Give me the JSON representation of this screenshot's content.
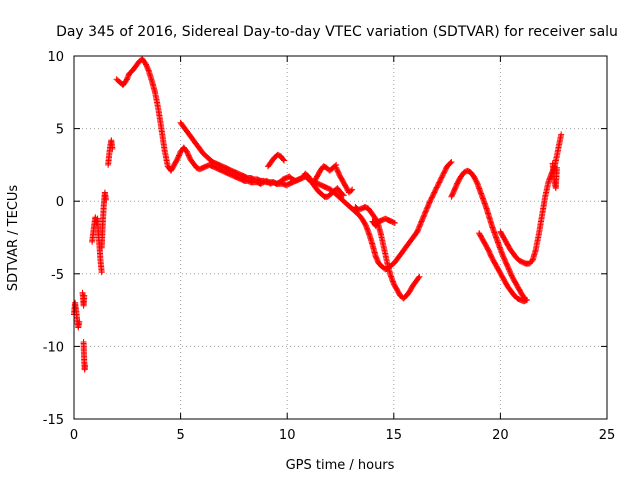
{
  "chart_data": {
    "type": "scatter",
    "title": "Day 345 of 2016, Sidereal Day-to-day VTEC variation (SDTVAR) for receiver salu",
    "xlabel": "GPS time / hours",
    "ylabel": "SDTVAR / TECUs",
    "xlim": [
      0,
      25
    ],
    "ylim": [
      -15,
      10
    ],
    "xticks": [
      0,
      5,
      10,
      15,
      20,
      25
    ],
    "yticks": [
      -15,
      -10,
      -5,
      0,
      5,
      10
    ],
    "grid": true,
    "legend": "none",
    "marker": "+",
    "series": [
      {
        "name": "SDTVAR",
        "color": "#ff0000",
        "segments": [
          {
            "x": [
              0.0,
              0.05,
              0.1,
              0.15,
              0.2,
              0.25
            ],
            "y": [
              -7.8,
              -7.0,
              -7.5,
              -8.2,
              -8.7,
              -8.3
            ]
          },
          {
            "x": [
              0.4,
              0.42,
              0.45,
              0.48
            ],
            "y": [
              -6.3,
              -6.6,
              -7.2,
              -6.5
            ]
          },
          {
            "x": [
              0.45,
              0.48,
              0.5,
              0.52
            ],
            "y": [
              -9.7,
              -11.0,
              -11.6,
              -11.3
            ]
          },
          {
            "x": [
              0.85,
              0.9,
              0.95,
              1.0,
              1.05,
              1.1,
              1.15,
              1.2,
              1.25,
              1.3
            ],
            "y": [
              -2.8,
              -2.2,
              -1.6,
              -1.1,
              -1.5,
              -1.2,
              -2.4,
              -3.2,
              -4.2,
              -4.9
            ]
          },
          {
            "x": [
              1.3,
              1.35,
              1.4,
              1.45,
              1.5
            ],
            "y": [
              -3.2,
              -1.5,
              -0.2,
              0.6,
              0.1
            ]
          },
          {
            "x": [
              1.6,
              1.65,
              1.7,
              1.75,
              1.8
            ],
            "y": [
              2.5,
              3.2,
              3.8,
              4.2,
              3.6
            ]
          },
          {
            "x": [
              2.0,
              2.15,
              2.3,
              2.45,
              2.6,
              2.75,
              2.9,
              3.05,
              3.2,
              3.35,
              3.5,
              3.65,
              3.8,
              3.95,
              4.1,
              4.25,
              4.4,
              4.55,
              4.7,
              4.85,
              5.0,
              5.15,
              5.3,
              5.45,
              5.6,
              5.75,
              5.9,
              6.05,
              6.2,
              6.35,
              6.5,
              6.65,
              6.8,
              6.95,
              7.1,
              7.25,
              7.4,
              7.55,
              7.7,
              7.85,
              8.0,
              8.15,
              8.3,
              8.45,
              8.6,
              8.75,
              8.9,
              9.05,
              9.2,
              9.35,
              9.5,
              9.65,
              9.8,
              9.95,
              10.1,
              10.25,
              10.4,
              10.55,
              10.7,
              10.85,
              11.0,
              11.15,
              11.3,
              11.45,
              11.6,
              11.75,
              11.9,
              12.05,
              12.2,
              12.35,
              12.5,
              12.65
            ],
            "y": [
              8.4,
              8.2,
              8.0,
              8.3,
              8.8,
              9.0,
              9.3,
              9.6,
              9.8,
              9.5,
              9.0,
              8.3,
              7.5,
              6.4,
              5.0,
              3.5,
              2.4,
              2.1,
              2.5,
              2.9,
              3.4,
              3.7,
              3.4,
              2.9,
              2.6,
              2.3,
              2.2,
              2.3,
              2.4,
              2.5,
              2.4,
              2.3,
              2.2,
              2.1,
              2.0,
              1.9,
              1.8,
              1.7,
              1.6,
              1.5,
              1.4,
              1.4,
              1.3,
              1.3,
              1.3,
              1.2,
              1.3,
              1.4,
              1.2,
              1.3,
              1.2,
              1.3,
              1.5,
              1.6,
              1.7,
              1.5,
              1.4,
              1.5,
              1.6,
              1.9,
              1.7,
              1.3,
              1.0,
              0.7,
              0.5,
              0.3,
              0.3,
              0.5,
              0.7,
              0.9,
              0.6,
              0.4
            ]
          },
          {
            "x": [
              9.1,
              9.25,
              9.4,
              9.55,
              9.7,
              9.85
            ],
            "y": [
              2.4,
              2.7,
              3.0,
              3.2,
              3.1,
              2.8
            ]
          },
          {
            "x": [
              11.25,
              11.4,
              11.55,
              11.7,
              11.85,
              12.0,
              12.15,
              12.3
            ],
            "y": [
              1.3,
              1.7,
              2.1,
              2.4,
              2.3,
              2.1,
              2.3,
              2.5
            ]
          },
          {
            "x": [
              12.3,
              12.45,
              12.6,
              12.75,
              12.9,
              13.05
            ],
            "y": [
              2.3,
              1.8,
              1.4,
              1.0,
              0.6,
              0.8
            ]
          },
          {
            "x": [
              5.0,
              5.15,
              5.3,
              5.45,
              5.6,
              5.75,
              5.9,
              6.05,
              6.2,
              6.35,
              6.5,
              6.65,
              6.8,
              6.95,
              7.1,
              7.25,
              7.4,
              7.55,
              7.7,
              7.85,
              8.0,
              8.15,
              8.3,
              8.45,
              8.6,
              8.75,
              8.9,
              9.05,
              9.2,
              9.35,
              9.5,
              9.65,
              9.8,
              9.95,
              10.1,
              10.25,
              10.4,
              10.55,
              10.7,
              10.85,
              11.0,
              11.15,
              11.3,
              11.45,
              11.6,
              11.75,
              11.9,
              12.05,
              12.2,
              12.35,
              12.5,
              12.65,
              12.8,
              12.95,
              13.1,
              13.25,
              13.4,
              13.55,
              13.7,
              13.85,
              14.0,
              14.15,
              14.3,
              14.45,
              14.6,
              14.75,
              14.9,
              15.05,
              15.2,
              15.35,
              15.5,
              15.65,
              15.8,
              15.95,
              16.1
            ],
            "y": [
              5.4,
              5.1,
              4.8,
              4.5,
              4.2,
              3.9,
              3.6,
              3.3,
              3.1,
              2.9,
              2.7,
              2.6,
              2.5,
              2.4,
              2.3,
              2.2,
              2.1,
              2.0,
              1.9,
              1.8,
              1.7,
              1.6,
              1.6,
              1.5,
              1.5,
              1.4,
              1.4,
              1.3,
              1.3,
              1.3,
              1.2,
              1.2,
              1.2,
              1.1,
              1.2,
              1.3,
              1.4,
              1.5,
              1.6,
              1.7,
              1.5,
              1.4,
              1.3,
              1.2,
              1.1,
              1.0,
              0.9,
              0.8,
              0.6,
              0.4,
              0.2,
              0.0,
              -0.2,
              -0.4,
              -0.6,
              -0.8,
              -1.0,
              -1.3,
              -1.7,
              -2.3,
              -3.0,
              -3.8,
              -4.3,
              -4.5,
              -4.7,
              -4.6,
              -4.4,
              -4.2,
              -3.9,
              -3.6,
              -3.3,
              -3.0,
              -2.7,
              -2.4,
              -2.1
            ]
          },
          {
            "x": [
              13.2,
              13.35,
              13.5,
              13.65,
              13.8,
              13.95,
              14.1,
              14.25,
              14.4,
              14.55,
              14.7,
              14.85,
              15.0,
              15.15,
              15.3,
              15.45,
              15.6,
              15.75,
              15.9,
              16.05,
              16.2
            ],
            "y": [
              -0.4,
              -0.6,
              -0.5,
              -0.4,
              -0.5,
              -0.8,
              -1.1,
              -1.5,
              -2.3,
              -3.3,
              -4.3,
              -5.1,
              -5.7,
              -6.1,
              -6.5,
              -6.7,
              -6.5,
              -6.2,
              -5.8,
              -5.5,
              -5.2
            ]
          },
          {
            "x": [
              14.0,
              14.15,
              14.3,
              14.45,
              14.6,
              14.75,
              14.9,
              15.05
            ],
            "y": [
              -1.4,
              -1.7,
              -1.4,
              -1.3,
              -1.2,
              -1.3,
              -1.4,
              -1.5
            ]
          },
          {
            "x": [
              16.1,
              16.3,
              16.5,
              16.7,
              16.9,
              17.1,
              17.3,
              17.5,
              17.7
            ],
            "y": [
              -2.1,
              -1.4,
              -0.7,
              0.0,
              0.6,
              1.2,
              1.8,
              2.4,
              2.7
            ]
          },
          {
            "x": [
              17.7,
              17.85,
              18.0,
              18.15,
              18.3,
              18.45,
              18.6,
              18.75,
              18.9,
              19.05,
              19.2,
              19.35,
              19.5,
              19.65,
              19.8,
              19.95,
              20.1,
              20.25,
              20.4,
              20.55,
              20.7,
              20.85,
              21.0,
              21.15
            ],
            "y": [
              0.3,
              0.8,
              1.3,
              1.7,
              2.0,
              2.1,
              2.0,
              1.7,
              1.3,
              0.7,
              0.1,
              -0.5,
              -1.2,
              -1.9,
              -2.5,
              -3.1,
              -3.7,
              -4.2,
              -4.7,
              -5.2,
              -5.6,
              -6.0,
              -6.4,
              -6.7
            ]
          },
          {
            "x": [
              19.0,
              19.15,
              19.3,
              19.45,
              19.6,
              19.75,
              19.9,
              20.05,
              20.2,
              20.35,
              20.5,
              20.65,
              20.8,
              20.95,
              21.1,
              21.25
            ],
            "y": [
              -2.2,
              -2.6,
              -3.0,
              -3.4,
              -3.9,
              -4.3,
              -4.7,
              -5.1,
              -5.5,
              -5.9,
              -6.2,
              -6.5,
              -6.7,
              -6.8,
              -6.9,
              -6.8
            ]
          },
          {
            "x": [
              20.0,
              20.15,
              20.3,
              20.45,
              20.6,
              20.75,
              20.9,
              21.05,
              21.2,
              21.35,
              21.5,
              21.65,
              21.8,
              21.95,
              22.1,
              22.25,
              22.4,
              22.55,
              22.7,
              22.85
            ],
            "y": [
              -2.1,
              -2.5,
              -2.9,
              -3.3,
              -3.6,
              -3.9,
              -4.1,
              -4.2,
              -4.3,
              -4.3,
              -4.1,
              -3.4,
              -2.3,
              -1.0,
              0.3,
              1.3,
              1.9,
              2.4,
              3.5,
              4.6
            ]
          },
          {
            "x": [
              22.45,
              22.5,
              22.55,
              22.6,
              22.65
            ],
            "y": [
              2.6,
              1.9,
              1.2,
              0.9,
              2.3
            ]
          }
        ]
      }
    ]
  }
}
